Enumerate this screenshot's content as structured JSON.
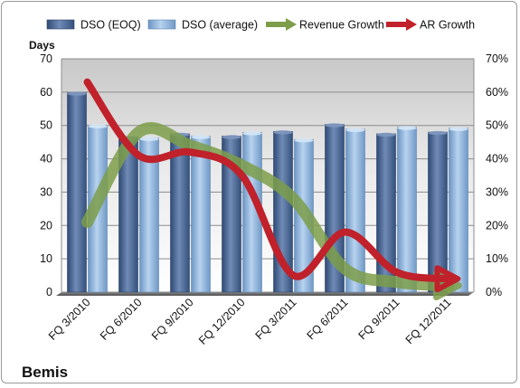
{
  "company": "Bemis",
  "chart_data": {
    "type": "bar",
    "categories": [
      "FQ 3/2010",
      "FQ 6/2010",
      "FQ 9/2010",
      "FQ 12/2010",
      "FQ 3/2011",
      "FQ 6/2011",
      "FQ 9/2011",
      "FQ 12/2011"
    ],
    "ylabel": "Days",
    "ylim": [
      0,
      70
    ],
    "y2lim": [
      0,
      0.7
    ],
    "y_ticks": [
      0,
      10,
      20,
      30,
      40,
      50,
      60,
      70
    ],
    "y2_ticks": [
      "0%",
      "10%",
      "20%",
      "30%",
      "40%",
      "50%",
      "60%",
      "70%"
    ],
    "legend_position": "top",
    "grid": true,
    "series": [
      {
        "name": "DSO (EOQ)",
        "kind": "bar",
        "axis": "left",
        "color": "#4a6591",
        "values": [
          59.8,
          46.5,
          47.5,
          46.8,
          48.2,
          50.3,
          47.5,
          48.0
        ]
      },
      {
        "name": "DSO (average)",
        "kind": "bar",
        "axis": "left",
        "color": "#8bb3dd",
        "values": [
          50.0,
          46.2,
          46.8,
          47.9,
          45.8,
          48.9,
          49.5,
          49.2
        ]
      },
      {
        "name": "Revenue Growth",
        "kind": "line",
        "axis": "right",
        "color": "#7d9d4a",
        "values": [
          0.21,
          0.48,
          0.44,
          0.38,
          0.28,
          0.07,
          0.03,
          0.02
        ]
      },
      {
        "name": "AR Growth",
        "kind": "line",
        "axis": "right",
        "color": "#c0212a",
        "values": [
          0.63,
          0.41,
          0.42,
          0.35,
          0.05,
          0.18,
          0.06,
          0.04
        ]
      }
    ]
  }
}
